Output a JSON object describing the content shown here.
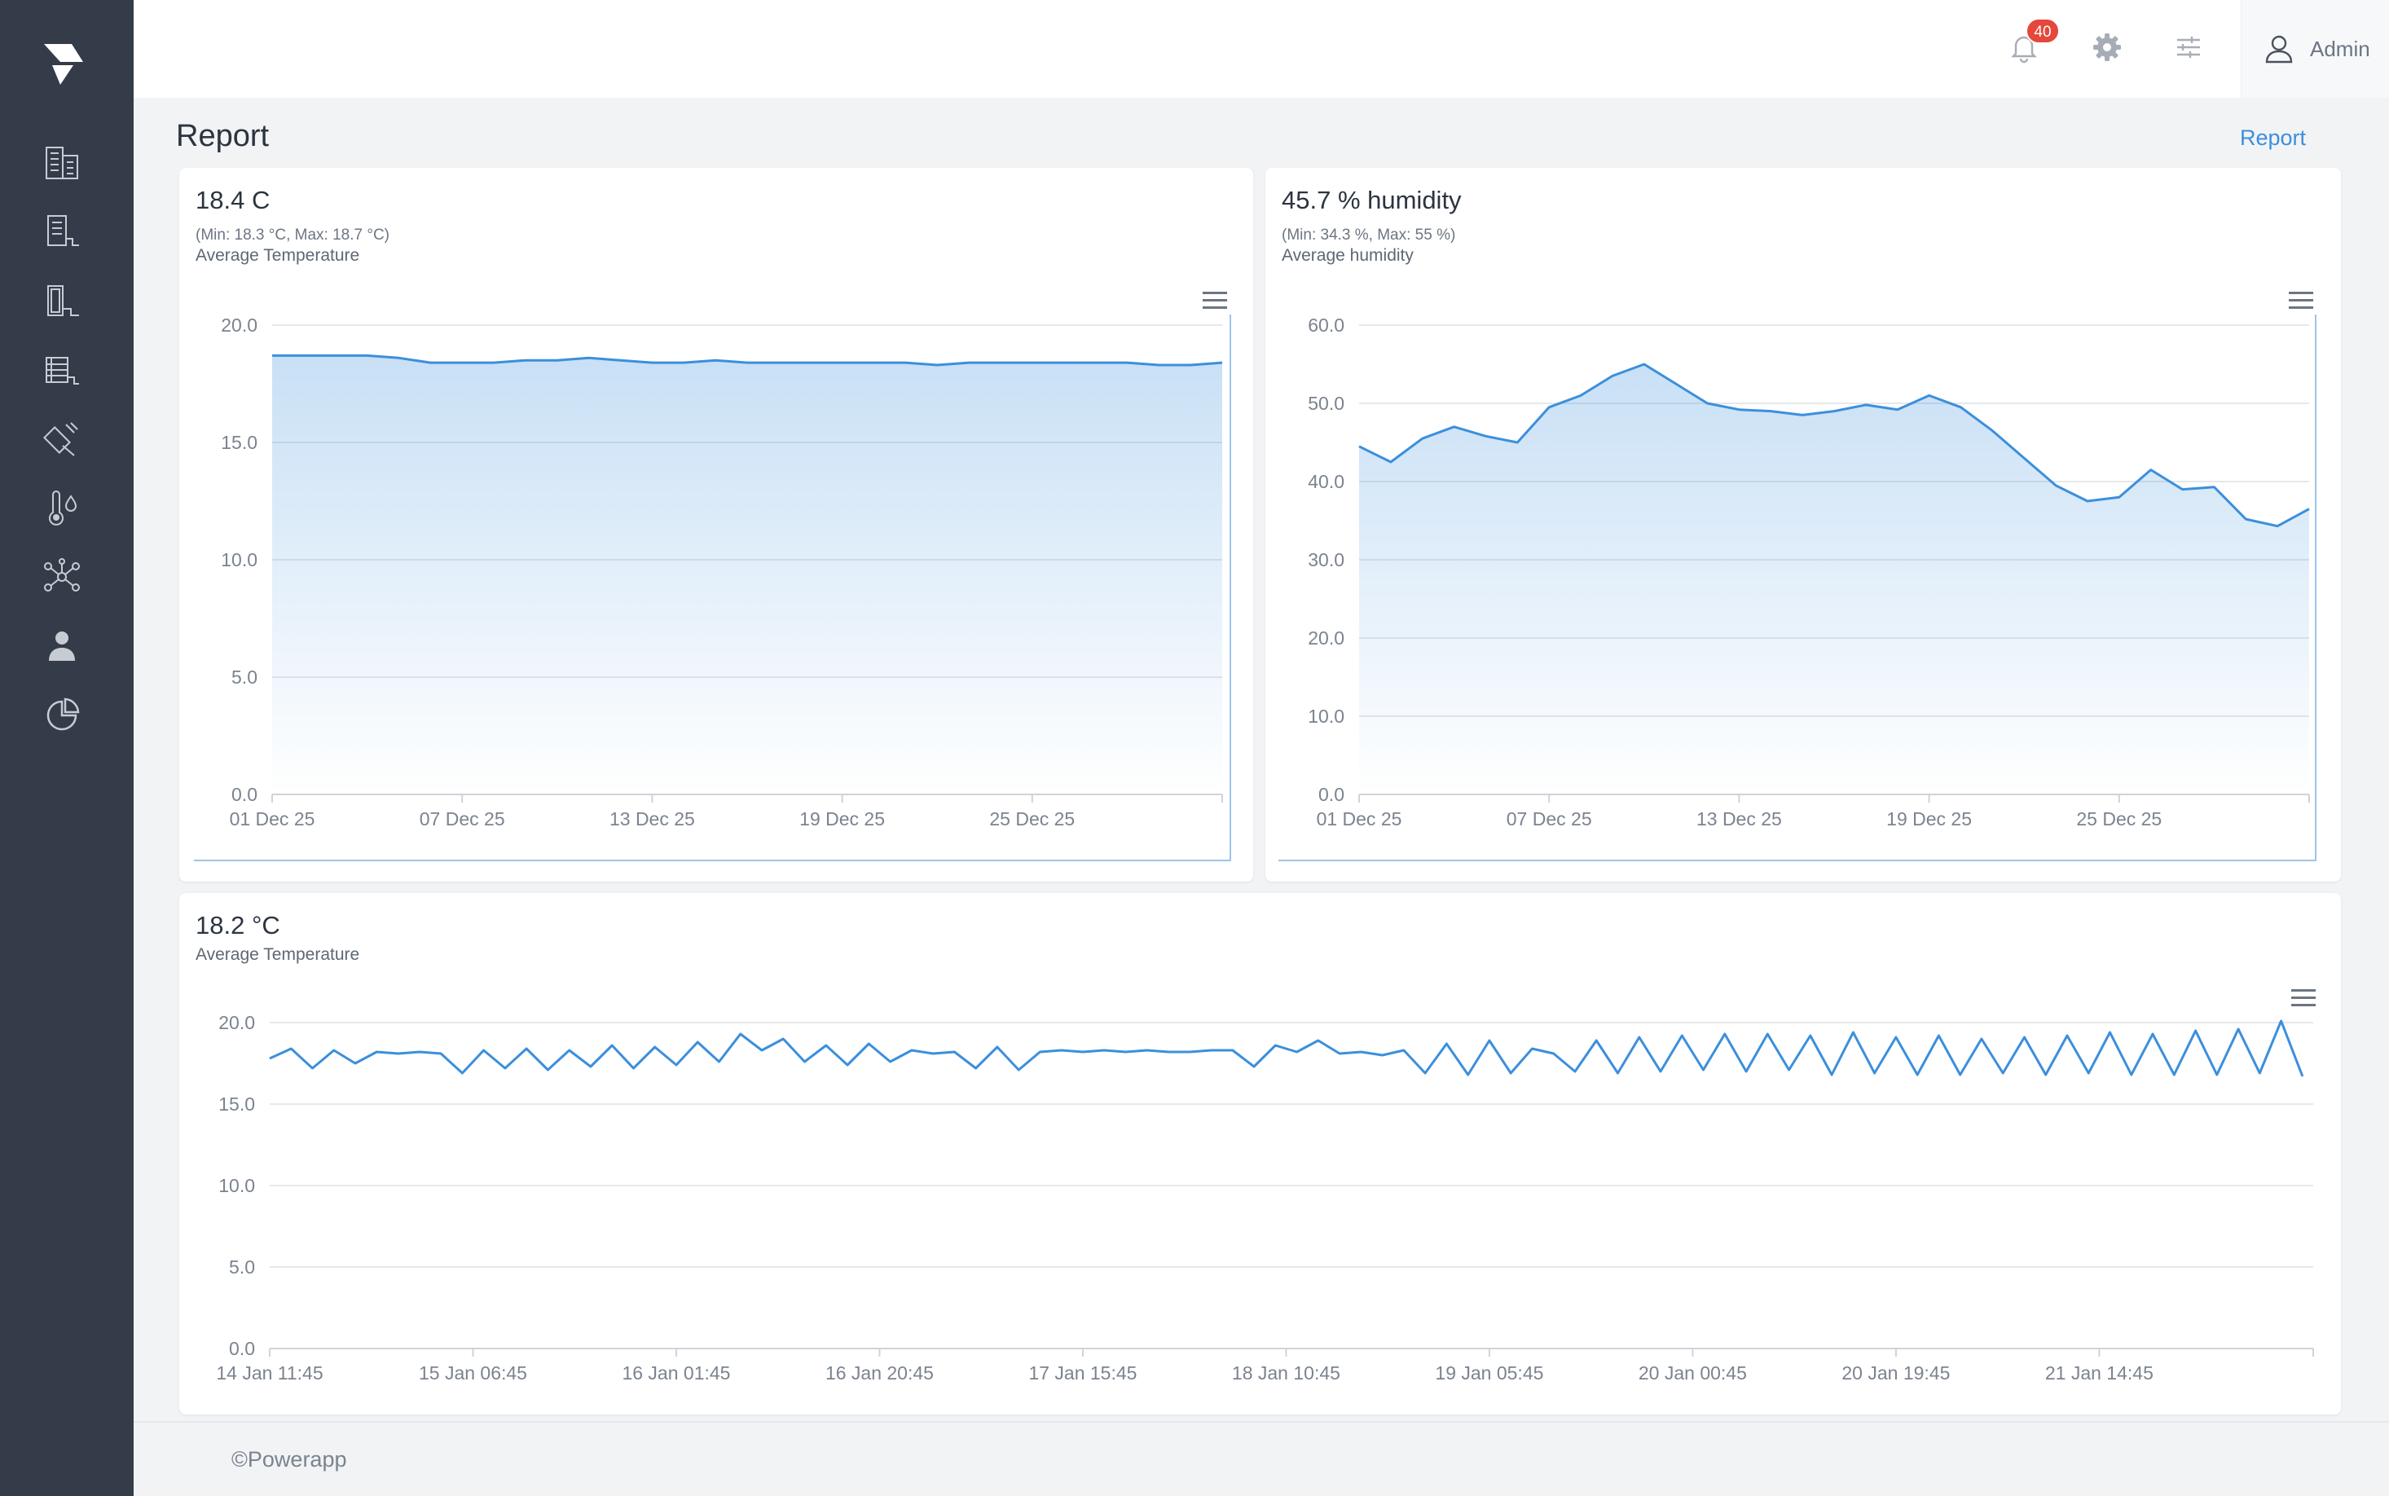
{
  "header": {
    "notifications_count": "40",
    "user_name": "Admin"
  },
  "page": {
    "title": "Report",
    "breadcrumb": "Report"
  },
  "sidebar": {
    "items": [
      {
        "icon": "buildings-icon"
      },
      {
        "icon": "floor-icon"
      },
      {
        "icon": "room-icon"
      },
      {
        "icon": "racks-icon"
      },
      {
        "icon": "sensor-icon"
      },
      {
        "icon": "thermometer-drop-icon"
      },
      {
        "icon": "network-icon"
      },
      {
        "icon": "users-icon"
      },
      {
        "icon": "pie-chart-icon"
      }
    ]
  },
  "cards": {
    "temperature": {
      "value": "18.4 C",
      "minmax": "(Min: 18.3 °C, Max: 18.7 °C)",
      "label": "Average Temperature"
    },
    "humidity": {
      "value": "45.7 % humidity",
      "minmax": "(Min: 34.3 %, Max: 55 %)",
      "label": "Average humidity"
    },
    "temperature_detail": {
      "value": "18.2 °C",
      "label": "Average Temperature"
    }
  },
  "footer": {
    "text": "Powerapp"
  },
  "colors": {
    "accent": "#3b8fdc",
    "sidebar": "#353c49",
    "badge": "#e5473a"
  },
  "chart_data": [
    {
      "type": "area",
      "ylim": [
        0,
        20
      ],
      "yticks": [
        "20.0",
        "15.0",
        "10.0",
        "5.0",
        "0.0"
      ],
      "xtick_labels": [
        "01 Dec 25",
        "07 Dec 25",
        "13 Dec 25",
        "19 Dec 25",
        "25 Dec 25"
      ],
      "xtick_days": [
        0,
        6,
        12,
        18,
        24
      ],
      "x_days": [
        0,
        1,
        2,
        3,
        4,
        5,
        6,
        7,
        8,
        9,
        10,
        11,
        12,
        13,
        14,
        15,
        16,
        17,
        18,
        19,
        20,
        21,
        22,
        23,
        24,
        25,
        26,
        27,
        28,
        29,
        30
      ],
      "values": [
        18.7,
        18.7,
        18.7,
        18.7,
        18.6,
        18.4,
        18.4,
        18.4,
        18.5,
        18.5,
        18.6,
        18.5,
        18.4,
        18.4,
        18.5,
        18.4,
        18.4,
        18.4,
        18.4,
        18.4,
        18.4,
        18.3,
        18.4,
        18.4,
        18.4,
        18.4,
        18.4,
        18.4,
        18.3,
        18.3,
        18.4
      ]
    },
    {
      "type": "area",
      "ylim": [
        0,
        60
      ],
      "yticks": [
        "60.0",
        "50.0",
        "40.0",
        "30.0",
        "20.0",
        "10.0",
        "0.0"
      ],
      "xtick_labels": [
        "01 Dec 25",
        "07 Dec 25",
        "13 Dec 25",
        "19 Dec 25",
        "25 Dec 25"
      ],
      "xtick_days": [
        0,
        6,
        12,
        18,
        24
      ],
      "x_days": [
        0,
        1,
        2,
        3,
        4,
        5,
        6,
        7,
        8,
        9,
        10,
        11,
        12,
        13,
        14,
        15,
        16,
        17,
        18,
        19,
        20,
        21,
        22,
        23,
        24,
        25,
        26,
        27,
        28,
        29,
        30
      ],
      "values": [
        44.5,
        42.5,
        45.5,
        47,
        45.8,
        45,
        49.5,
        51,
        53.5,
        55,
        52.5,
        50,
        49.2,
        49,
        48.5,
        49,
        49.8,
        49.2,
        51,
        49.5,
        46.5,
        43,
        39.5,
        37.5,
        38,
        41.5,
        39,
        39.3,
        35.2,
        34.3,
        36.5
      ]
    },
    {
      "type": "line",
      "ylim": [
        0,
        20
      ],
      "yticks": [
        "20.0",
        "15.0",
        "10.0",
        "5.0",
        "0.0"
      ],
      "xtick_labels": [
        "14 Jan 11:45",
        "15 Jan 06:45",
        "16 Jan 01:45",
        "16 Jan 20:45",
        "17 Jan 15:45",
        "18 Jan 10:45",
        "19 Jan 05:45",
        "20 Jan 00:45",
        "20 Jan 19:45",
        "21 Jan 14:45"
      ],
      "xtick_hours": [
        0,
        19,
        38,
        57,
        76,
        95,
        114,
        133,
        152,
        171
      ],
      "x_hours": [
        0,
        2,
        4,
        6,
        8,
        10,
        12,
        14,
        16,
        18,
        20,
        22,
        24,
        26,
        28,
        30,
        32,
        34,
        36,
        38,
        40,
        42,
        44,
        46,
        48,
        50,
        52,
        54,
        56,
        58,
        60,
        62,
        64,
        66,
        68,
        70,
        72,
        74,
        76,
        78,
        80,
        82,
        84,
        86,
        88,
        90,
        92,
        94,
        96,
        98,
        100,
        102,
        104,
        106,
        108,
        110,
        112,
        114,
        116,
        118,
        120,
        122,
        124,
        126,
        128,
        130,
        132,
        134,
        136,
        138,
        140,
        142,
        144,
        146,
        148,
        150,
        152,
        154,
        156,
        158,
        160,
        162,
        164,
        166,
        168,
        170,
        172,
        174,
        176,
        178,
        180,
        182,
        184,
        186,
        188,
        190
      ],
      "values": [
        17.8,
        18.4,
        17.2,
        18.3,
        17.5,
        18.2,
        18.1,
        18.2,
        18.1,
        16.9,
        18.3,
        17.2,
        18.4,
        17.1,
        18.3,
        17.3,
        18.6,
        17.2,
        18.5,
        17.4,
        18.8,
        17.6,
        19.3,
        18.3,
        19.0,
        17.6,
        18.6,
        17.4,
        18.7,
        17.6,
        18.3,
        18.1,
        18.2,
        17.2,
        18.5,
        17.1,
        18.2,
        18.3,
        18.2,
        18.3,
        18.2,
        18.3,
        18.2,
        18.2,
        18.3,
        18.3,
        17.3,
        18.6,
        18.2,
        18.9,
        18.1,
        18.2,
        18.0,
        18.3,
        16.9,
        18.7,
        16.8,
        18.9,
        16.9,
        18.4,
        18.1,
        17.0,
        18.9,
        16.9,
        19.1,
        17.0,
        19.2,
        17.1,
        19.3,
        17.0,
        19.3,
        17.1,
        19.2,
        16.8,
        19.4,
        16.9,
        19.1,
        16.8,
        19.2,
        16.8,
        19.0,
        16.9,
        19.1,
        16.8,
        19.2,
        16.9,
        19.4,
        16.8,
        19.3,
        16.8,
        19.5,
        16.8,
        19.6,
        16.9,
        20.1,
        16.7
      ]
    }
  ]
}
